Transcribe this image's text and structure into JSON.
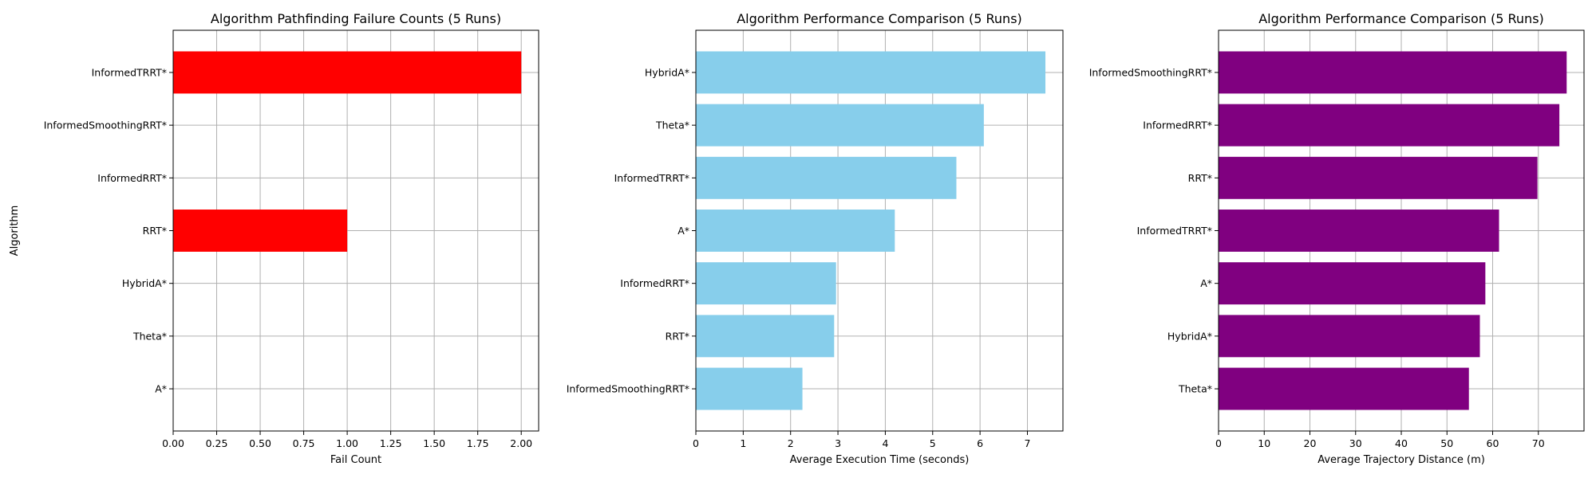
{
  "chart_data": [
    {
      "type": "bar",
      "orientation": "horizontal",
      "title": "Algorithm Pathfinding Failure Counts (5 Runs)",
      "xlabel": "Fail Count",
      "ylabel": "Algorithm",
      "categories": [
        "A*",
        "Theta*",
        "HybridA*",
        "RRT*",
        "InformedRRT*",
        "InformedSmoothingRRT*",
        "InformedTRRT*"
      ],
      "values": [
        0,
        0,
        0,
        1,
        0,
        0,
        2
      ],
      "xlim": [
        0,
        2.1
      ],
      "xticks": [
        "0.00",
        "0.25",
        "0.50",
        "0.75",
        "1.00",
        "1.25",
        "1.50",
        "1.75",
        "2.00"
      ],
      "color": "#ff0000",
      "grid": true
    },
    {
      "type": "bar",
      "orientation": "horizontal",
      "title": "Algorithm Performance Comparison (5 Runs)",
      "xlabel": "Average Execution Time (seconds)",
      "ylabel": "",
      "categories": [
        "InformedSmoothingRRT*",
        "RRT*",
        "InformedRRT*",
        "A*",
        "InformedTRRT*",
        "Theta*",
        "HybridA*"
      ],
      "values": [
        2.25,
        2.92,
        2.96,
        4.2,
        5.5,
        6.08,
        7.38
      ],
      "xlim": [
        0,
        7.75
      ],
      "xticks": [
        "0",
        "1",
        "2",
        "3",
        "4",
        "5",
        "6",
        "7"
      ],
      "color": "#87ceeb",
      "grid": true
    },
    {
      "type": "bar",
      "orientation": "horizontal",
      "title": "Algorithm Performance Comparison (5 Runs)",
      "xlabel": "Average Trajectory Distance (m)",
      "ylabel": "",
      "categories": [
        "Theta*",
        "HybridA*",
        "A*",
        "InformedTRRT*",
        "RRT*",
        "InformedRRT*",
        "InformedSmoothingRRT*"
      ],
      "values": [
        54.8,
        57.2,
        58.4,
        61.4,
        69.8,
        74.6,
        76.2
      ],
      "xlim": [
        0,
        80
      ],
      "xticks": [
        "0",
        "10",
        "20",
        "30",
        "40",
        "50",
        "60",
        "70"
      ],
      "color": "#800080",
      "grid": true
    }
  ]
}
